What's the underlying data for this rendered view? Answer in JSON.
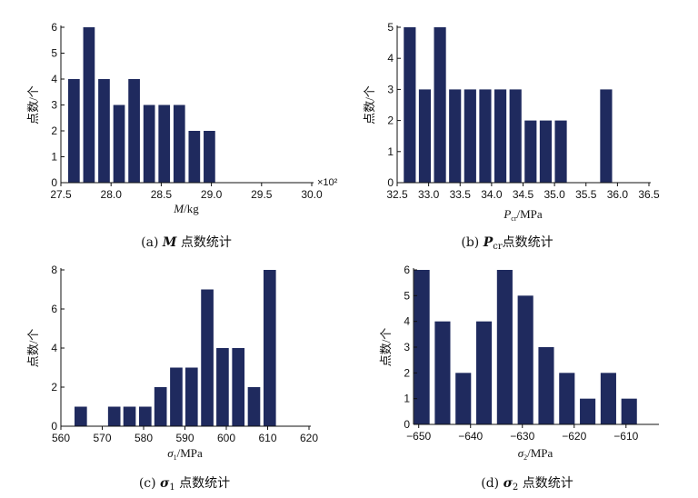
{
  "chart_data": [
    {
      "type": "bar",
      "ylabel": "点数/个",
      "xlabel_symbol": "M",
      "xlabel_unit": "/kg",
      "xlabel_sub": "",
      "x_multiplier": "×10²",
      "caption_prefix": "(a) ",
      "caption_symbol": "M",
      "caption_sub": "",
      "caption_suffix": " 点数统计",
      "xlim": [
        27.5,
        30.0
      ],
      "ylim": [
        0,
        6
      ],
      "xticks": [
        "27.5",
        "28.0",
        "28.5",
        "29.0",
        "29.5",
        "30.0"
      ],
      "yticks": [
        "0",
        "1",
        "2",
        "3",
        "4",
        "5",
        "6"
      ],
      "bar_width": 0.115,
      "x": [
        27.63,
        27.78,
        27.93,
        28.08,
        28.23,
        28.38,
        28.53,
        28.68,
        28.83,
        28.98,
        29.13
      ],
      "values": [
        4,
        6,
        4,
        3,
        4,
        3,
        3,
        3,
        2,
        2,
        0
      ],
      "color": "#1f2a5e"
    },
    {
      "type": "bar",
      "ylabel": "点数/个",
      "xlabel_symbol": "P",
      "xlabel_unit": "/MPa",
      "xlabel_sub": "cr",
      "x_multiplier": "",
      "caption_prefix": "(b) ",
      "caption_symbol": "P",
      "caption_sub": "cr",
      "caption_suffix": "点数统计",
      "xlim": [
        32.5,
        36.5
      ],
      "ylim": [
        0,
        5
      ],
      "xticks": [
        "32.5",
        "33.0",
        "33.5",
        "34.0",
        "34.5",
        "35.0",
        "35.5",
        "36.0",
        "36.5"
      ],
      "yticks": [
        "0",
        "1",
        "2",
        "3",
        "4",
        "5"
      ],
      "bar_width": 0.19,
      "x": [
        32.7,
        32.94,
        33.18,
        33.42,
        33.66,
        33.9,
        34.14,
        34.38,
        34.62,
        34.86,
        35.1,
        35.34,
        35.82
      ],
      "values": [
        5,
        3,
        5,
        3,
        3,
        3,
        3,
        3,
        2,
        2,
        2,
        0,
        3
      ],
      "color": "#1f2a5e"
    },
    {
      "type": "bar",
      "ylabel": "点数/个",
      "xlabel_symbol": "σ",
      "xlabel_unit": "/MPa",
      "xlabel_sub": "1",
      "x_multiplier": "",
      "caption_prefix": "(c) ",
      "caption_symbol": "σ",
      "caption_sub": "1",
      "caption_suffix": " 点数统计",
      "xlim": [
        560,
        620
      ],
      "ylim": [
        0,
        8
      ],
      "xticks": [
        "560",
        "570",
        "580",
        "590",
        "600",
        "610",
        "620"
      ],
      "yticks": [
        "0",
        "2",
        "4",
        "6",
        "8"
      ],
      "bar_width": 3.0,
      "x": [
        564.8,
        569.0,
        572.9,
        576.6,
        580.4,
        584.1,
        587.9,
        591.6,
        595.4,
        599.1,
        602.9,
        606.7,
        610.5,
        614.3
      ],
      "values": [
        1,
        0,
        1,
        1,
        1,
        2,
        3,
        3,
        7,
        4,
        4,
        2,
        8,
        0
      ],
      "color": "#1f2a5e"
    },
    {
      "type": "bar",
      "ylabel": "点数/个",
      "xlabel_symbol": "σ",
      "xlabel_unit": "/MPa",
      "xlabel_sub": "2",
      "x_multiplier": "",
      "caption_prefix": "(d) ",
      "caption_symbol": "σ",
      "caption_sub": "2",
      "caption_suffix": " 点数统计",
      "xlim": [
        -651,
        -604
      ],
      "ylim": [
        0,
        6
      ],
      "xticks": [
        "−650",
        "−640",
        "−630",
        "−620",
        "−610"
      ],
      "xtick_values": [
        -650,
        -640,
        -630,
        -620,
        -610
      ],
      "yticks": [
        "0",
        "1",
        "2",
        "3",
        "4",
        "5",
        "6"
      ],
      "bar_width": 3.0,
      "x": [
        -649.4,
        -645.4,
        -641.4,
        -637.4,
        -633.4,
        -629.4,
        -625.4,
        -621.4,
        -617.4,
        -613.4,
        -609.4,
        -605.4
      ],
      "values": [
        6,
        4,
        2,
        4,
        6,
        5,
        3,
        2,
        1,
        2,
        1,
        0
      ],
      "color": "#1f2a5e"
    }
  ]
}
